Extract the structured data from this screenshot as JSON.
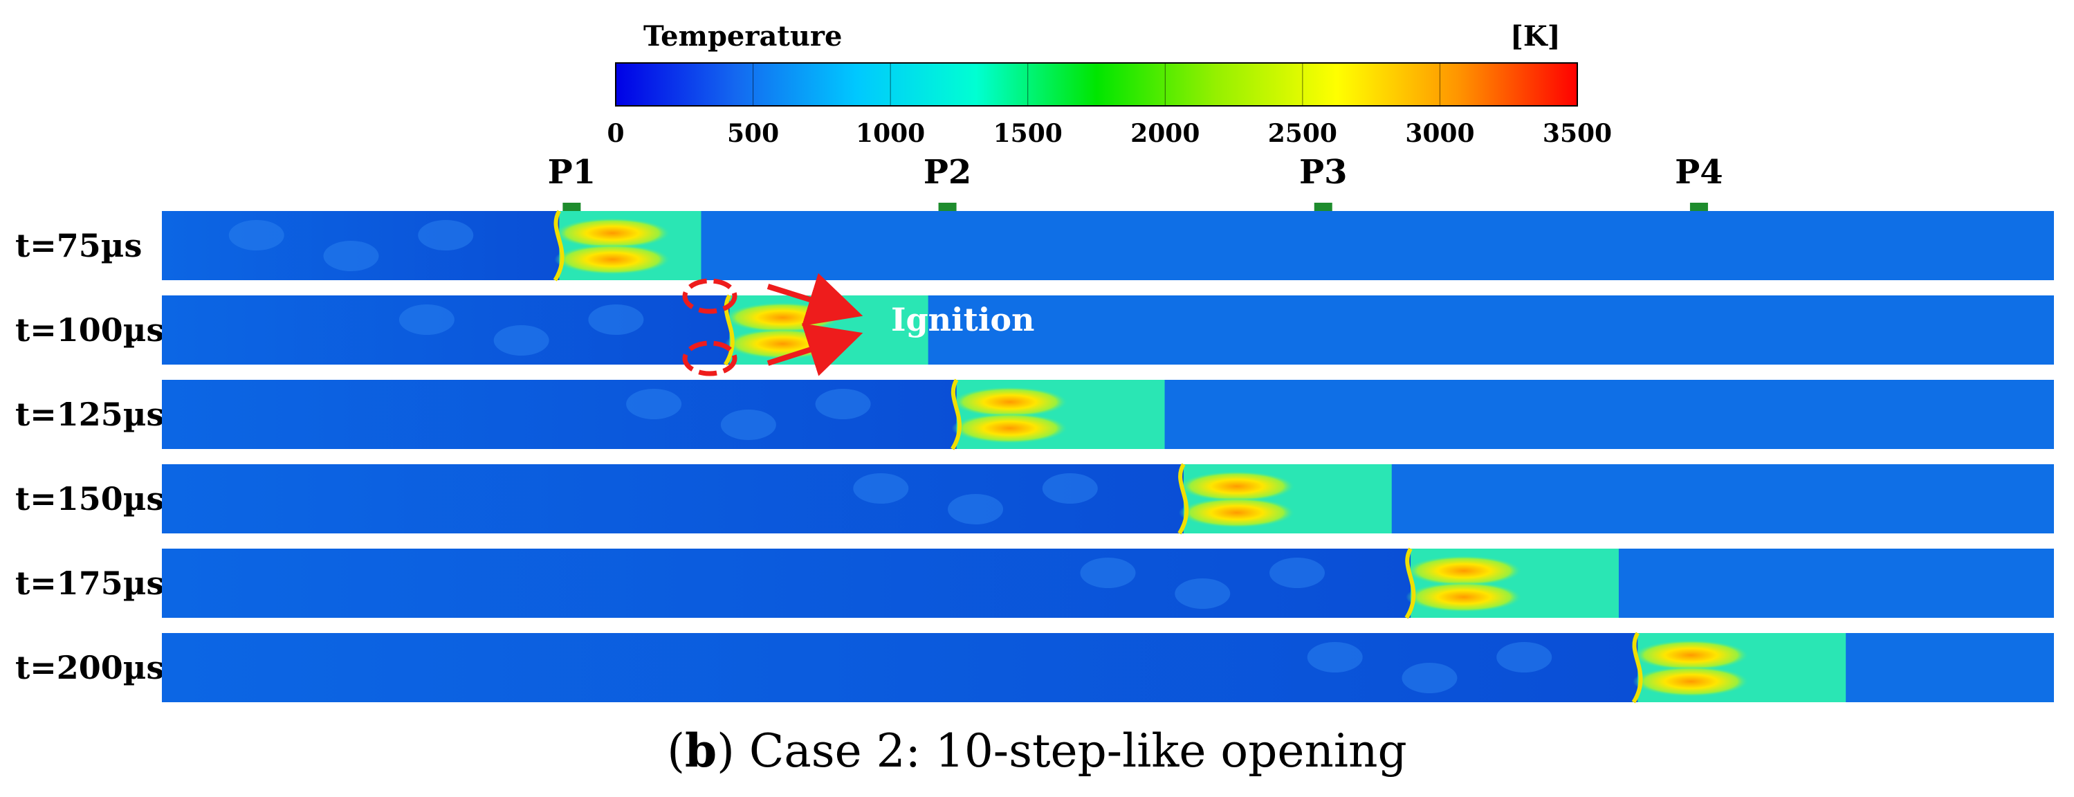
{
  "colorbar": {
    "title": "Temperature",
    "unit": "[K]",
    "ticks": [
      "0",
      "500",
      "1000",
      "1500",
      "2000",
      "2500",
      "3000",
      "3500"
    ],
    "min": 0,
    "max": 3500,
    "colors": [
      "#0000e6",
      "#1468f0",
      "#00c8ff",
      "#00ffd2",
      "#00e600",
      "#96f000",
      "#ffff00",
      "#ff9600",
      "#ff0000"
    ]
  },
  "probes": [
    {
      "label": "P1",
      "position_fraction": 0.2166
    },
    {
      "label": "P2",
      "position_fraction": 0.4152
    },
    {
      "label": "P3",
      "position_fraction": 0.6138
    },
    {
      "label": "P4",
      "position_fraction": 0.8124
    }
  ],
  "probe_color": "#1e8c2d",
  "rows": [
    {
      "label": "t=75µs",
      "shock_fraction": 0.285,
      "flame_fraction": 0.21
    },
    {
      "label": "t=100µs",
      "shock_fraction": 0.405,
      "flame_fraction": 0.3
    },
    {
      "label": "t=125µs",
      "shock_fraction": 0.53,
      "flame_fraction": 0.42
    },
    {
      "label": "t=150µs",
      "shock_fraction": 0.65,
      "flame_fraction": 0.54
    },
    {
      "label": "t=175µs",
      "shock_fraction": 0.77,
      "flame_fraction": 0.66
    },
    {
      "label": "t=200µs",
      "shock_fraction": 0.89,
      "flame_fraction": 0.78
    }
  ],
  "annotation": {
    "label": "Ignition",
    "color": "#ee1c1c"
  },
  "field_colors": {
    "cold": "#0f6fe6",
    "unburnt_cold": "#0b5fe0",
    "compressed": "#2ae6b4",
    "flame_hot": "#f0e000",
    "flame_core": "#ff9a00",
    "flame_edge": "#8ff040"
  },
  "caption": {
    "bold_part": "b",
    "text": "Case 2: 10-step-like opening"
  }
}
